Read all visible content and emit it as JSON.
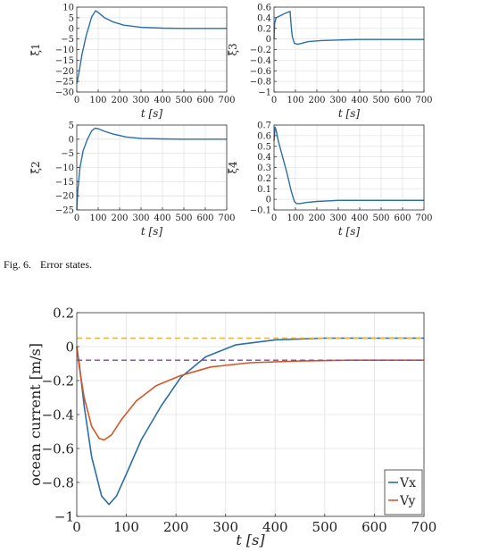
{
  "caption": {
    "label": "Fig. 6.",
    "text": "Error states."
  },
  "chart_data": [
    {
      "type": "line",
      "ylabel": "ξ̃1",
      "xlabel": "t [s]",
      "xlim": [
        0,
        700
      ],
      "ylim": [
        -30,
        10
      ],
      "xticks": [
        0,
        100,
        200,
        300,
        400,
        500,
        600,
        700
      ],
      "yticks": [
        -30,
        -25,
        -20,
        -15,
        -10,
        -5,
        0,
        5,
        10
      ],
      "grid": true,
      "series": [
        {
          "color": "#2b6fa8",
          "x": [
            0,
            10,
            25,
            45,
            70,
            88,
            100,
            130,
            170,
            220,
            300,
            400,
            500,
            600,
            700
          ],
          "y": [
            -26,
            -21,
            -12,
            -3,
            5.5,
            8.3,
            7.5,
            5,
            3,
            1.5,
            0.5,
            0.1,
            0,
            0,
            0
          ]
        }
      ]
    },
    {
      "type": "line",
      "ylabel": "ξ̃3",
      "xlabel": "t [s]",
      "xlim": [
        0,
        700
      ],
      "ylim": [
        -1,
        0.6
      ],
      "xticks": [
        0,
        100,
        200,
        300,
        400,
        500,
        600,
        700
      ],
      "yticks": [
        -1,
        -0.8,
        -0.6,
        -0.4,
        -0.2,
        0,
        0.2,
        0.4,
        0.6
      ],
      "grid": true,
      "series": [
        {
          "color": "#2b6fa8",
          "x": [
            0,
            3,
            10,
            30,
            55,
            75,
            80,
            85,
            95,
            110,
            130,
            160,
            220,
            300,
            400,
            500,
            600,
            700
          ],
          "y": [
            0.0,
            0.3,
            0.4,
            0.44,
            0.49,
            0.52,
            0.25,
            0.05,
            -0.08,
            -0.1,
            -0.08,
            -0.05,
            -0.03,
            -0.02,
            -0.01,
            -0.01,
            -0.01,
            -0.01
          ]
        }
      ]
    },
    {
      "type": "line",
      "ylabel": "ξ̃2",
      "xlabel": "t [s]",
      "xlim": [
        0,
        700
      ],
      "ylim": [
        -25,
        5
      ],
      "xticks": [
        0,
        100,
        200,
        300,
        400,
        500,
        600,
        700
      ],
      "yticks": [
        -25,
        -20,
        -15,
        -10,
        -5,
        0,
        5
      ],
      "grid": true,
      "series": [
        {
          "color": "#2b6fa8",
          "x": [
            0,
            5,
            15,
            30,
            50,
            70,
            85,
            100,
            130,
            170,
            230,
            300,
            400,
            500,
            600,
            700
          ],
          "y": [
            -25,
            -18,
            -10,
            -4,
            0,
            3,
            3.9,
            3.7,
            2.8,
            1.8,
            0.8,
            0.3,
            0.1,
            0,
            0,
            0
          ]
        }
      ]
    },
    {
      "type": "line",
      "ylabel": "ξ̃4",
      "xlabel": "t [s]",
      "xlim": [
        0,
        700
      ],
      "ylim": [
        -0.1,
        0.7
      ],
      "xticks": [
        0,
        100,
        200,
        300,
        400,
        500,
        600,
        700
      ],
      "yticks": [
        -0.1,
        0,
        0.1,
        0.2,
        0.3,
        0.4,
        0.5,
        0.6,
        0.7
      ],
      "grid": true,
      "series": [
        {
          "color": "#2b6fa8",
          "x": [
            0,
            5,
            10,
            20,
            40,
            60,
            80,
            95,
            105,
            120,
            150,
            200,
            300,
            400,
            500,
            600,
            700
          ],
          "y": [
            0.55,
            0.68,
            0.65,
            0.55,
            0.4,
            0.25,
            0.08,
            -0.02,
            -0.04,
            -0.04,
            -0.03,
            -0.02,
            -0.01,
            -0.01,
            -0.01,
            -0.01,
            -0.01
          ]
        }
      ]
    },
    {
      "type": "line",
      "ylabel": "ocean current [m/s]",
      "xlabel": "t [s]",
      "xlim": [
        0,
        700
      ],
      "ylim": [
        -1,
        0.2
      ],
      "xticks": [
        0,
        100,
        200,
        300,
        400,
        500,
        600,
        700
      ],
      "yticks": [
        -1,
        -0.8,
        -0.6,
        -0.4,
        -0.2,
        0,
        0.2
      ],
      "grid": true,
      "legend": "bottom-right",
      "series": [
        {
          "name": "Vx",
          "color": "#2b6fa8",
          "x": [
            0,
            5,
            15,
            30,
            50,
            65,
            80,
            100,
            130,
            170,
            210,
            260,
            320,
            400,
            500,
            600,
            700
          ],
          "y": [
            0.0,
            -0.1,
            -0.35,
            -0.65,
            -0.88,
            -0.93,
            -0.88,
            -0.75,
            -0.55,
            -0.35,
            -0.18,
            -0.06,
            0.01,
            0.04,
            0.05,
            0.05,
            0.05
          ]
        },
        {
          "name": "Vy",
          "color": "#d4572a",
          "x": [
            0,
            5,
            15,
            30,
            45,
            55,
            70,
            90,
            120,
            160,
            210,
            270,
            350,
            450,
            550,
            700
          ],
          "y": [
            0.0,
            -0.12,
            -0.3,
            -0.47,
            -0.54,
            -0.55,
            -0.52,
            -0.43,
            -0.32,
            -0.23,
            -0.17,
            -0.12,
            -0.095,
            -0.085,
            -0.08,
            -0.08
          ]
        },
        {
          "style": "dashed",
          "color": "#e6b441",
          "x": [
            0,
            700
          ],
          "y": [
            0.05,
            0.05
          ]
        },
        {
          "style": "dashed",
          "color": "#8a3fa0",
          "x": [
            0,
            700
          ],
          "y": [
            -0.08,
            -0.08
          ]
        }
      ]
    }
  ]
}
